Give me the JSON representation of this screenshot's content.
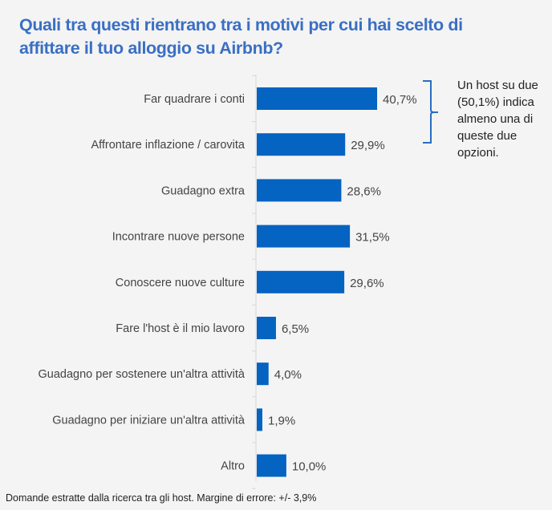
{
  "chart_data": {
    "type": "bar",
    "orientation": "horizontal",
    "title": "Quali tra questi rientrano tra i motivi per cui hai scelto di affittare il tuo alloggio su Airbnb?",
    "categories": [
      "Far quadrare i conti",
      "Affrontare inflazione / carovita",
      "Guadagno extra",
      "Incontrare nuove persone",
      "Conoscere nuove culture",
      "Fare l'host è il mio lavoro",
      "Guadagno per sostenere un'altra attività",
      "Guadagno per iniziare un'altra attività",
      "Altro"
    ],
    "values": [
      40.7,
      29.9,
      28.6,
      31.5,
      29.6,
      6.5,
      4.0,
      1.9,
      10.0
    ],
    "value_labels": [
      "40,7%",
      "29,9%",
      "28,6%",
      "31,5%",
      "29,6%",
      "6,5%",
      "4,0%",
      "1,9%",
      "10,0%"
    ],
    "unit": "%",
    "xlim": [
      0,
      100
    ],
    "grid": false,
    "annotation": "Un host su due (50,1%) indica almeno una di queste due opzioni.",
    "annotation_lines": [
      "Un host su due",
      "(50,1%) indica",
      "almeno una di",
      "queste due",
      "opzioni."
    ],
    "footer": "Domande estratte dalla ricerca tra gli host. Margine di errore: +/- 3,9%"
  },
  "colors": {
    "bar": "#0563c1",
    "title": "#3a6fc4",
    "background": "#f4f4f4",
    "bracket": "#2a6cc4"
  }
}
